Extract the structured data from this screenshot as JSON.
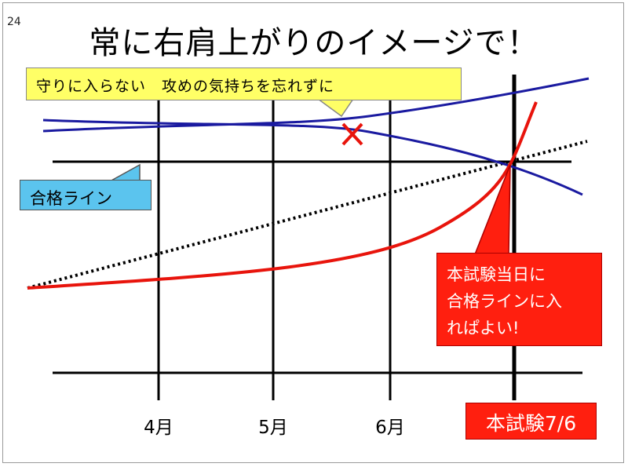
{
  "page_number": "24",
  "title": "常に右肩上がりのイメージで！",
  "callouts": {
    "motto": "守りに入らない　攻めの気持ちを忘れずに",
    "passing_line": "合格ライン",
    "goal_line1": "本試験当日に",
    "goal_line2": "合格ラインに入",
    "goal_line3": "れぱよい!"
  },
  "exam_label": "本試験7/6",
  "months": [
    "4月",
    "5月",
    "6月"
  ],
  "colors": {
    "blue_curves": "#1a1aa0",
    "red_curve": "#e8140c",
    "grid": "#000000",
    "yellow_callout": "#ffff66",
    "blue_callout": "#5bc4ee",
    "red_callout": "#ff1f0f"
  },
  "icons": {
    "fail_mark": "x-mark-icon"
  }
}
